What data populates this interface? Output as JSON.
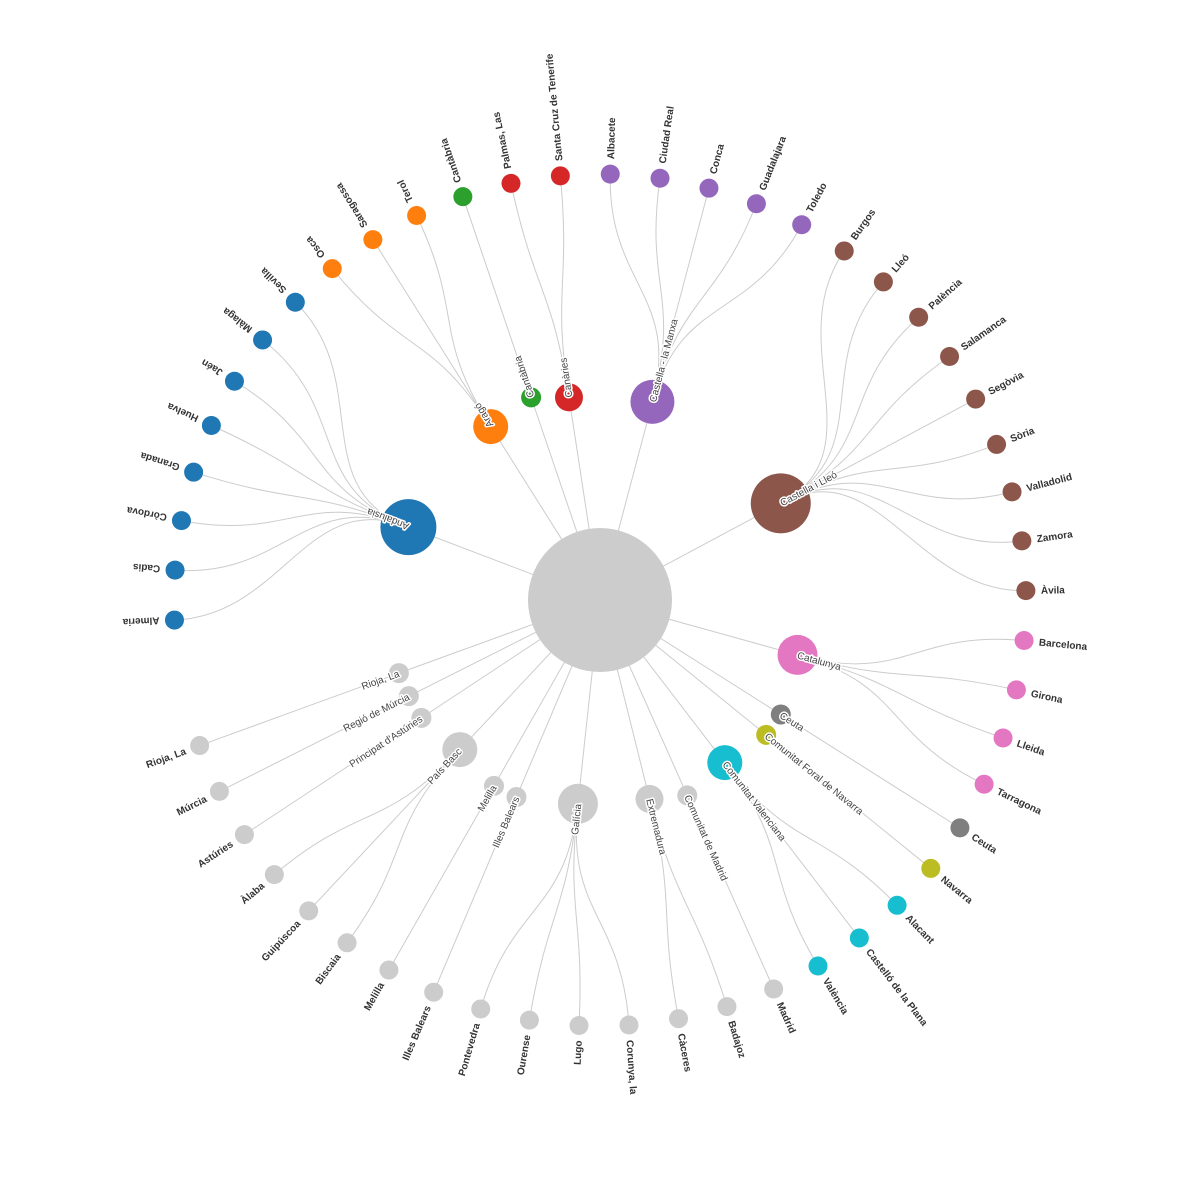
{
  "chart_data": {
    "type": "radial-tree",
    "root": "",
    "colors": {
      "Andalusia": "#1f77b4",
      "Aragó": "#ff7f0e",
      "Cantàbria": "#2ca02c",
      "Canàries": "#d62728",
      "Castella - la Manxa": "#9467bd",
      "Castella i Lleó": "#8c564b",
      "Catalunya": "#e377c2",
      "Ceuta": "#7f7f7f",
      "Comunitat Foral de Navarra": "#bcbd22",
      "Comunitat Valenciana": "#17becf",
      "other": "#cccccc"
    },
    "groups": [
      {
        "name": "Andalusia",
        "children": [
          "Almeria",
          "Cadis",
          "Còrdova",
          "Granada",
          "Huelva",
          "Jaén",
          "Màlaga",
          "Sevilla"
        ]
      },
      {
        "name": "Aragó",
        "children": [
          "Osca",
          "Saragossa",
          "Terol"
        ]
      },
      {
        "name": "Cantàbria",
        "children": [
          "Cantàbria"
        ]
      },
      {
        "name": "Canàries",
        "children": [
          "Palmas, Las",
          "Santa Cruz de Tenerife"
        ]
      },
      {
        "name": "Castella - la Manxa",
        "children": [
          "Albacete",
          "Ciudad Real",
          "Conca",
          "Guadalajara",
          "Toledo"
        ]
      },
      {
        "name": "Castella i Lleó",
        "children": [
          "Burgos",
          "Lleó",
          "Palència",
          "Salamanca",
          "Segòvia",
          "Sòria",
          "Valladolid",
          "Zamora",
          "Àvila"
        ]
      },
      {
        "name": "Catalunya",
        "children": [
          "Barcelona",
          "Girona",
          "Lleida",
          "Tarragona"
        ]
      },
      {
        "name": "Ceuta",
        "children": [
          "Ceuta"
        ]
      },
      {
        "name": "Comunitat Foral de Navarra",
        "children": [
          "Navarra"
        ]
      },
      {
        "name": "Comunitat Valenciana",
        "children": [
          "Alacant",
          "Castelló de la Plana",
          "València"
        ]
      },
      {
        "name": "Comunitat de Madrid",
        "children": [
          "Madrid"
        ]
      },
      {
        "name": "Extremadura",
        "children": [
          "Badajoz",
          "Càceres"
        ]
      },
      {
        "name": "Galícia",
        "children": [
          "Corunya, la",
          "Lugo",
          "Ourense",
          "Pontevedra"
        ]
      },
      {
        "name": "Illes Balears",
        "children": [
          "Illes Balears"
        ]
      },
      {
        "name": "Melilla",
        "children": [
          "Melilla"
        ]
      },
      {
        "name": "País Basc",
        "children": [
          "Biscaia",
          "Guipúscoa",
          "Àlaba"
        ]
      },
      {
        "name": "Principat d'Astúries",
        "children": [
          "Astúries"
        ]
      },
      {
        "name": "Regió de Múrcia",
        "children": [
          "Múrcia"
        ]
      },
      {
        "name": "Rioja, La",
        "children": [
          "Rioja, La"
        ]
      }
    ]
  }
}
